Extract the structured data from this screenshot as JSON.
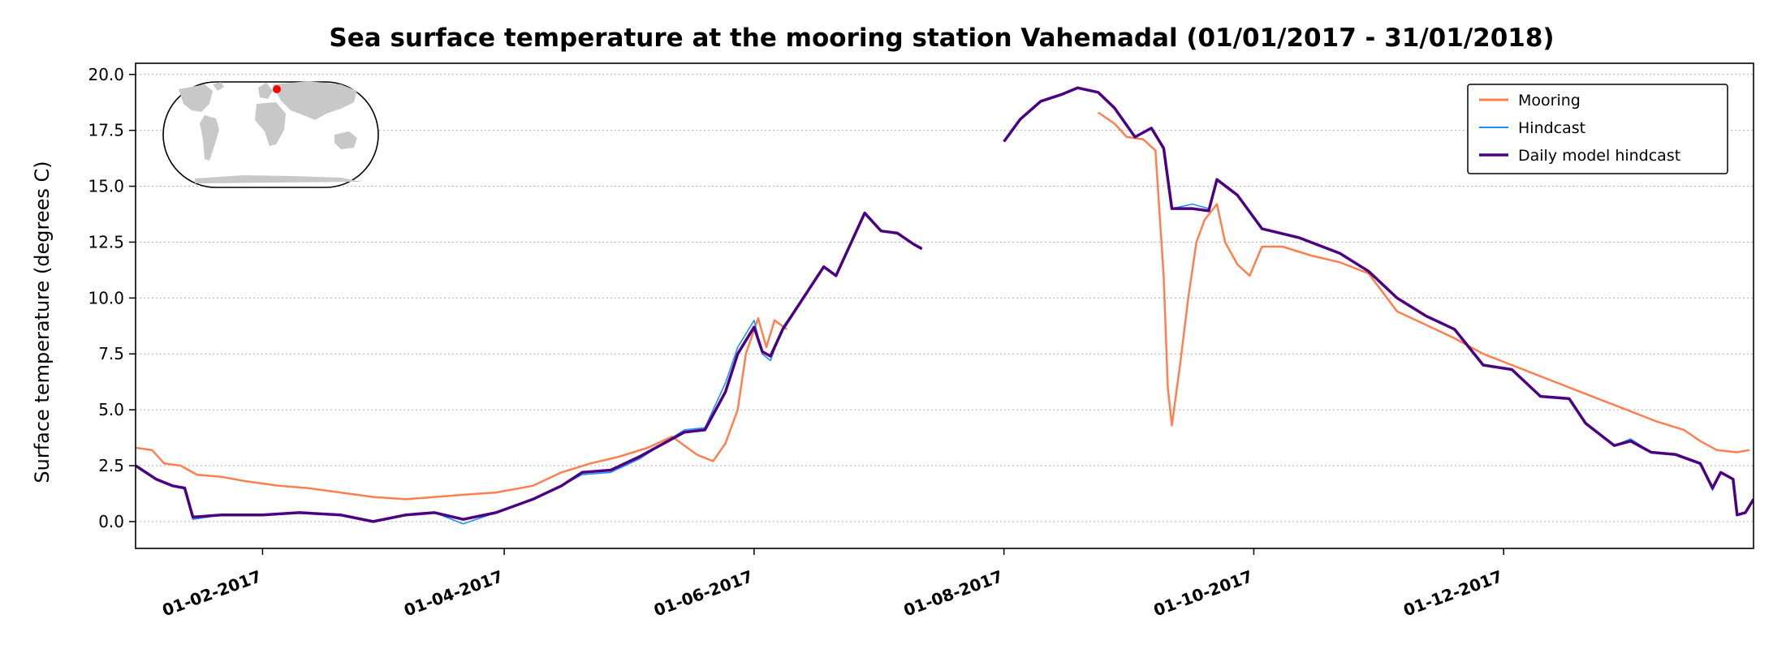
{
  "chart_data": {
    "type": "line",
    "title": "Sea surface temperature at the mooring station Vahemadal (01/01/2017 - 31/01/2018)",
    "xlabel": "",
    "ylabel": "Surface temperature (degrees C)",
    "xlim": [
      "2017-01-01",
      "2018-01-31"
    ],
    "ylim": [
      -1.2,
      20.5
    ],
    "yticks": [
      0.0,
      2.5,
      5.0,
      7.5,
      10.0,
      12.5,
      15.0,
      17.5,
      20.0
    ],
    "ytick_labels": [
      "0.0",
      "2.5",
      "5.0",
      "7.5",
      "10.0",
      "12.5",
      "15.0",
      "17.5",
      "20.0"
    ],
    "xticks": [
      "2017-02-01",
      "2017-04-01",
      "2017-06-01",
      "2017-08-01",
      "2017-10-01",
      "2017-12-01"
    ],
    "xtick_labels": [
      "01-02-2017",
      "01-04-2017",
      "01-06-2017",
      "01-08-2017",
      "01-10-2017",
      "01-12-2017"
    ],
    "grid": "horizontal dotted",
    "legend_position": "top-right",
    "inset": "world map with red dot marking station location",
    "series": [
      {
        "name": "Mooring",
        "color": "#ff7f50",
        "points": [
          [
            "2017-01-01",
            3.3
          ],
          [
            "2017-01-05",
            3.2
          ],
          [
            "2017-01-08",
            2.6
          ],
          [
            "2017-01-12",
            2.5
          ],
          [
            "2017-01-16",
            2.1
          ],
          [
            "2017-01-22",
            2.0
          ],
          [
            "2017-01-28",
            1.8
          ],
          [
            "2017-02-05",
            1.6
          ],
          [
            "2017-02-12",
            1.5
          ],
          [
            "2017-02-20",
            1.3
          ],
          [
            "2017-02-28",
            1.1
          ],
          [
            "2017-03-08",
            1.0
          ],
          [
            "2017-03-15",
            1.1
          ],
          [
            "2017-03-22",
            1.2
          ],
          [
            "2017-03-30",
            1.3
          ],
          [
            "2017-04-08",
            1.6
          ],
          [
            "2017-04-15",
            2.2
          ],
          [
            "2017-04-22",
            2.6
          ],
          [
            "2017-04-29",
            2.9
          ],
          [
            "2017-05-06",
            3.3
          ],
          [
            "2017-05-12",
            3.8
          ],
          [
            "2017-05-18",
            3.0
          ],
          [
            "2017-05-22",
            2.7
          ],
          [
            "2017-05-25",
            3.5
          ],
          [
            "2017-05-28",
            5.0
          ],
          [
            "2017-05-30",
            7.5
          ],
          [
            "2017-06-02",
            9.1
          ],
          [
            "2017-06-04",
            7.8
          ],
          [
            "2017-06-06",
            9.0
          ],
          [
            "2017-06-09",
            8.6
          ],
          [
            "2017-08-24",
            18.3
          ],
          [
            "2017-08-28",
            17.8
          ],
          [
            "2017-08-31",
            17.2
          ],
          [
            "2017-09-04",
            17.1
          ],
          [
            "2017-09-07",
            16.6
          ],
          [
            "2017-09-09",
            11.0
          ],
          [
            "2017-09-10",
            6.0
          ],
          [
            "2017-09-11",
            4.3
          ],
          [
            "2017-09-13",
            7.0
          ],
          [
            "2017-09-15",
            10.0
          ],
          [
            "2017-09-17",
            12.5
          ],
          [
            "2017-09-19",
            13.5
          ],
          [
            "2017-09-22",
            14.2
          ],
          [
            "2017-09-24",
            12.5
          ],
          [
            "2017-09-27",
            11.5
          ],
          [
            "2017-09-30",
            11.0
          ],
          [
            "2017-10-03",
            12.3
          ],
          [
            "2017-10-08",
            12.3
          ],
          [
            "2017-10-15",
            11.9
          ],
          [
            "2017-10-22",
            11.6
          ],
          [
            "2017-10-29",
            11.1
          ],
          [
            "2017-11-05",
            9.4
          ],
          [
            "2017-11-12",
            8.8
          ],
          [
            "2017-11-19",
            8.2
          ],
          [
            "2017-11-26",
            7.5
          ],
          [
            "2017-12-03",
            7.0
          ],
          [
            "2017-12-10",
            6.5
          ],
          [
            "2017-12-17",
            6.0
          ],
          [
            "2017-12-24",
            5.5
          ],
          [
            "2017-12-31",
            5.0
          ],
          [
            "2018-01-07",
            4.5
          ],
          [
            "2018-01-14",
            4.1
          ],
          [
            "2018-01-18",
            3.6
          ],
          [
            "2018-01-22",
            3.2
          ],
          [
            "2018-01-27",
            3.1
          ],
          [
            "2018-01-30",
            3.2
          ]
        ]
      },
      {
        "name": "Hindcast",
        "color": "#1e90ff",
        "points": [
          [
            "2017-01-01",
            2.5
          ],
          [
            "2017-01-06",
            1.9
          ],
          [
            "2017-01-10",
            1.6
          ],
          [
            "2017-01-13",
            1.5
          ],
          [
            "2017-01-15",
            0.1
          ],
          [
            "2017-01-22",
            0.3
          ],
          [
            "2017-02-01",
            0.3
          ],
          [
            "2017-02-10",
            0.4
          ],
          [
            "2017-02-20",
            0.3
          ],
          [
            "2017-02-28",
            0.0
          ],
          [
            "2017-03-08",
            0.3
          ],
          [
            "2017-03-15",
            0.4
          ],
          [
            "2017-03-22",
            -0.1
          ],
          [
            "2017-03-30",
            0.4
          ],
          [
            "2017-04-08",
            1.0
          ],
          [
            "2017-04-15",
            1.6
          ],
          [
            "2017-04-20",
            2.1
          ],
          [
            "2017-04-27",
            2.2
          ],
          [
            "2017-05-04",
            2.8
          ],
          [
            "2017-05-09",
            3.4
          ],
          [
            "2017-05-15",
            4.1
          ],
          [
            "2017-05-20",
            4.2
          ],
          [
            "2017-05-25",
            6.2
          ],
          [
            "2017-05-28",
            7.8
          ],
          [
            "2017-06-01",
            9.0
          ],
          [
            "2017-06-03",
            7.5
          ],
          [
            "2017-06-05",
            7.2
          ],
          [
            "2017-06-08",
            8.7
          ],
          [
            "2017-06-13",
            10.0
          ],
          [
            "2017-06-18",
            11.4
          ],
          [
            "2017-06-21",
            11.0
          ],
          [
            "2017-06-25",
            12.6
          ],
          [
            "2017-06-28",
            13.8
          ],
          [
            "2017-07-02",
            13.0
          ],
          [
            "2017-07-06",
            12.9
          ],
          [
            "2017-07-10",
            12.4
          ],
          [
            "2017-07-12",
            12.2
          ],
          [
            "2017-08-01",
            17.0
          ],
          [
            "2017-08-05",
            18.0
          ],
          [
            "2017-08-10",
            18.8
          ],
          [
            "2017-08-15",
            19.1
          ],
          [
            "2017-08-19",
            19.4
          ],
          [
            "2017-08-24",
            19.2
          ],
          [
            "2017-08-28",
            18.5
          ],
          [
            "2017-09-02",
            17.2
          ],
          [
            "2017-09-06",
            17.6
          ],
          [
            "2017-09-09",
            16.7
          ],
          [
            "2017-09-11",
            14.0
          ],
          [
            "2017-09-16",
            14.2
          ],
          [
            "2017-09-20",
            14.0
          ],
          [
            "2017-09-22",
            15.3
          ],
          [
            "2017-09-27",
            14.6
          ],
          [
            "2017-10-03",
            13.1
          ],
          [
            "2017-10-12",
            12.7
          ],
          [
            "2017-10-22",
            12.0
          ],
          [
            "2017-10-29",
            11.2
          ],
          [
            "2017-11-05",
            10.0
          ],
          [
            "2017-11-12",
            9.2
          ],
          [
            "2017-11-19",
            8.6
          ],
          [
            "2017-11-26",
            7.0
          ],
          [
            "2017-12-03",
            6.8
          ],
          [
            "2017-12-10",
            5.6
          ],
          [
            "2017-12-17",
            5.5
          ],
          [
            "2017-12-21",
            4.4
          ],
          [
            "2017-12-28",
            3.4
          ],
          [
            "2018-01-01",
            3.7
          ],
          [
            "2018-01-06",
            3.1
          ],
          [
            "2018-01-12",
            3.0
          ],
          [
            "2018-01-18",
            2.6
          ],
          [
            "2018-01-21",
            1.4
          ],
          [
            "2018-01-23",
            2.2
          ],
          [
            "2018-01-26",
            1.9
          ],
          [
            "2018-01-27",
            0.3
          ],
          [
            "2018-01-29",
            0.4
          ],
          [
            "2018-01-31",
            1.0
          ]
        ]
      },
      {
        "name": "Daily model hindcast",
        "color": "#4b0082",
        "points": [
          [
            "2017-01-01",
            2.5
          ],
          [
            "2017-01-06",
            1.9
          ],
          [
            "2017-01-10",
            1.6
          ],
          [
            "2017-01-13",
            1.5
          ],
          [
            "2017-01-15",
            0.2
          ],
          [
            "2017-01-22",
            0.3
          ],
          [
            "2017-02-01",
            0.3
          ],
          [
            "2017-02-10",
            0.4
          ],
          [
            "2017-02-20",
            0.3
          ],
          [
            "2017-02-28",
            0.0
          ],
          [
            "2017-03-08",
            0.3
          ],
          [
            "2017-03-15",
            0.4
          ],
          [
            "2017-03-22",
            0.1
          ],
          [
            "2017-03-30",
            0.4
          ],
          [
            "2017-04-08",
            1.0
          ],
          [
            "2017-04-15",
            1.6
          ],
          [
            "2017-04-20",
            2.2
          ],
          [
            "2017-04-27",
            2.3
          ],
          [
            "2017-05-04",
            2.9
          ],
          [
            "2017-05-09",
            3.4
          ],
          [
            "2017-05-15",
            4.0
          ],
          [
            "2017-05-20",
            4.1
          ],
          [
            "2017-05-25",
            5.8
          ],
          [
            "2017-05-28",
            7.5
          ],
          [
            "2017-06-01",
            8.7
          ],
          [
            "2017-06-03",
            7.6
          ],
          [
            "2017-06-05",
            7.4
          ],
          [
            "2017-06-08",
            8.6
          ],
          [
            "2017-06-13",
            10.0
          ],
          [
            "2017-06-18",
            11.4
          ],
          [
            "2017-06-21",
            11.0
          ],
          [
            "2017-06-25",
            12.6
          ],
          [
            "2017-06-28",
            13.8
          ],
          [
            "2017-07-02",
            13.0
          ],
          [
            "2017-07-06",
            12.9
          ],
          [
            "2017-07-10",
            12.4
          ],
          [
            "2017-07-12",
            12.2
          ],
          [
            "2017-08-01",
            17.0
          ],
          [
            "2017-08-05",
            18.0
          ],
          [
            "2017-08-10",
            18.8
          ],
          [
            "2017-08-15",
            19.1
          ],
          [
            "2017-08-19",
            19.4
          ],
          [
            "2017-08-24",
            19.2
          ],
          [
            "2017-08-28",
            18.5
          ],
          [
            "2017-09-02",
            17.2
          ],
          [
            "2017-09-06",
            17.6
          ],
          [
            "2017-09-09",
            16.7
          ],
          [
            "2017-09-11",
            14.0
          ],
          [
            "2017-09-16",
            14.0
          ],
          [
            "2017-09-20",
            13.9
          ],
          [
            "2017-09-22",
            15.3
          ],
          [
            "2017-09-27",
            14.6
          ],
          [
            "2017-10-03",
            13.1
          ],
          [
            "2017-10-12",
            12.7
          ],
          [
            "2017-10-22",
            12.0
          ],
          [
            "2017-10-29",
            11.2
          ],
          [
            "2017-11-05",
            10.0
          ],
          [
            "2017-11-12",
            9.2
          ],
          [
            "2017-11-19",
            8.6
          ],
          [
            "2017-11-26",
            7.0
          ],
          [
            "2017-12-03",
            6.8
          ],
          [
            "2017-12-10",
            5.6
          ],
          [
            "2017-12-17",
            5.5
          ],
          [
            "2017-12-21",
            4.4
          ],
          [
            "2017-12-28",
            3.4
          ],
          [
            "2018-01-01",
            3.6
          ],
          [
            "2018-01-06",
            3.1
          ],
          [
            "2018-01-12",
            3.0
          ],
          [
            "2018-01-18",
            2.6
          ],
          [
            "2018-01-21",
            1.5
          ],
          [
            "2018-01-23",
            2.2
          ],
          [
            "2018-01-26",
            1.9
          ],
          [
            "2018-01-27",
            0.3
          ],
          [
            "2018-01-29",
            0.4
          ],
          [
            "2018-01-31",
            1.0
          ]
        ]
      }
    ]
  }
}
